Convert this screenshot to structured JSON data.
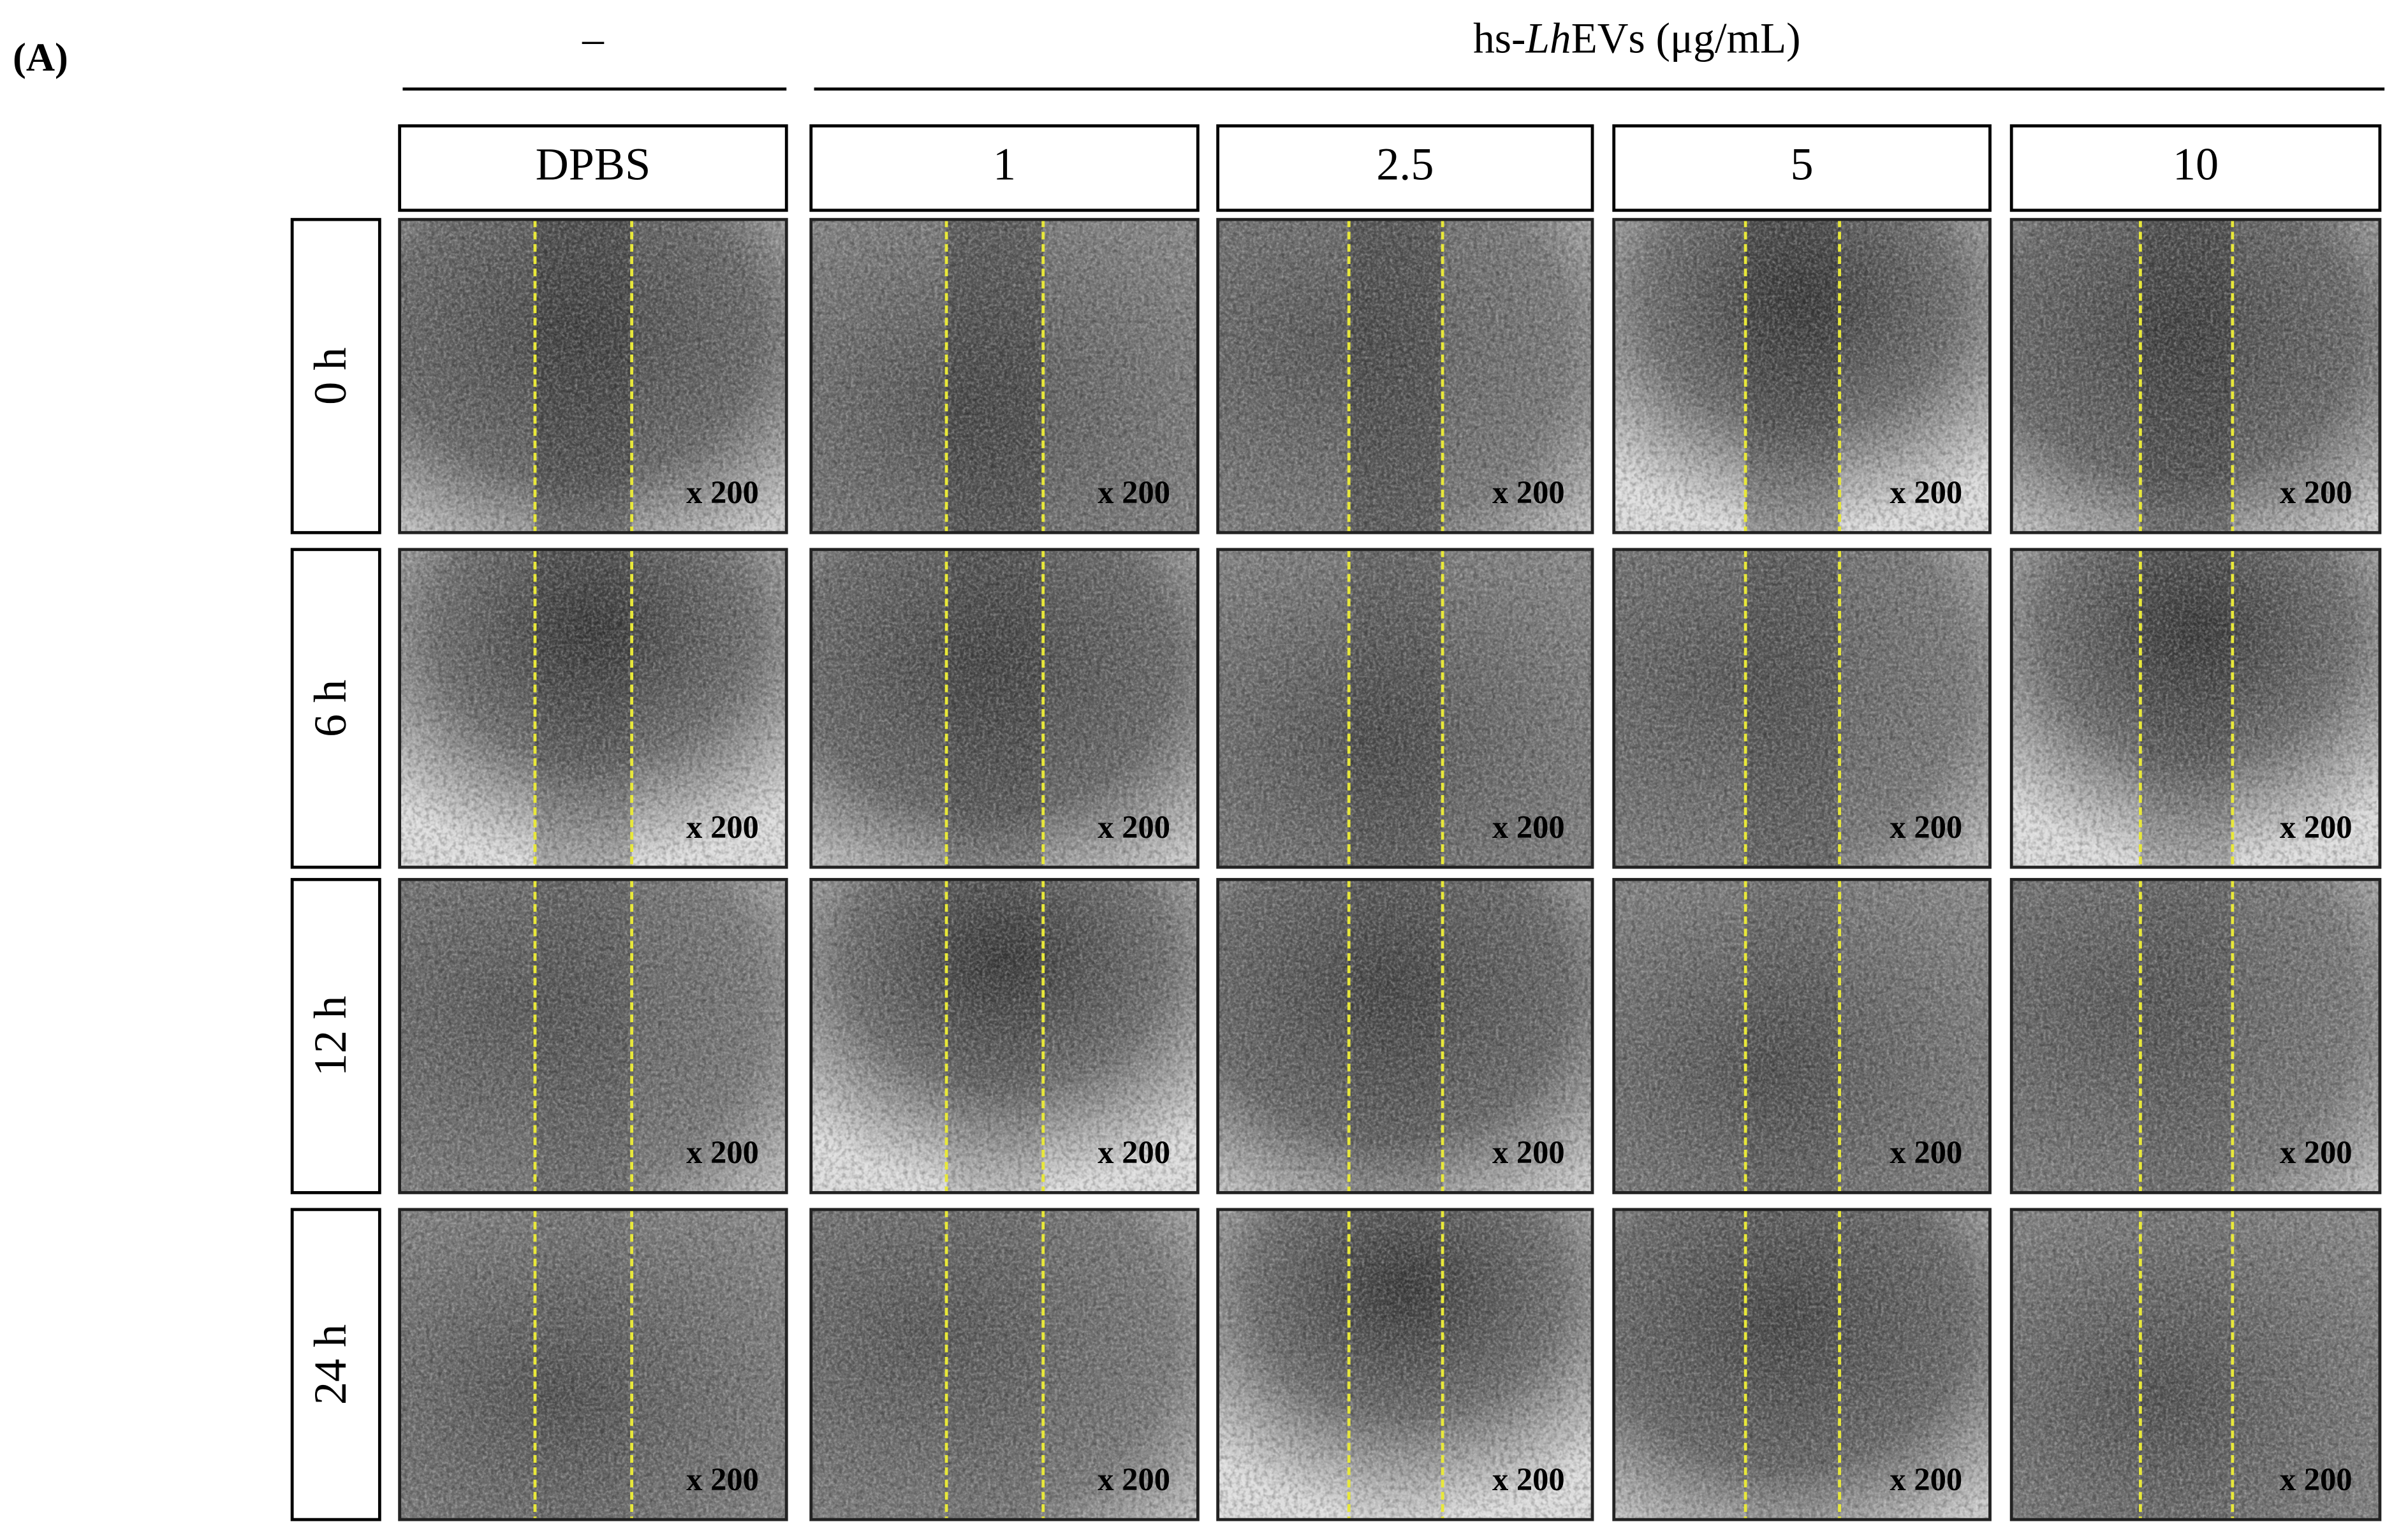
{
  "panel_label": "(A)",
  "groups": [
    {
      "label": "–"
    },
    {
      "label_parts": [
        "hs-",
        "Lh",
        "EVs (μg/mL)"
      ]
    }
  ],
  "columns": [
    "DPBS",
    "1",
    "2.5",
    "5",
    "10"
  ],
  "rows": [
    "0 h",
    "6 h",
    "12 h",
    "24 h"
  ],
  "magnification_labels": [
    [
      "x 200",
      "x 200",
      "x 200",
      "x 200",
      "x 200"
    ],
    [
      "x 200",
      "x 200",
      "x 200",
      "x 200",
      "x 200"
    ],
    [
      "x 200",
      "x 200",
      "x 200",
      "x 200",
      "x 200"
    ],
    [
      "x 200",
      "x 200",
      "x 200",
      "x 200",
      "x 200"
    ]
  ]
}
